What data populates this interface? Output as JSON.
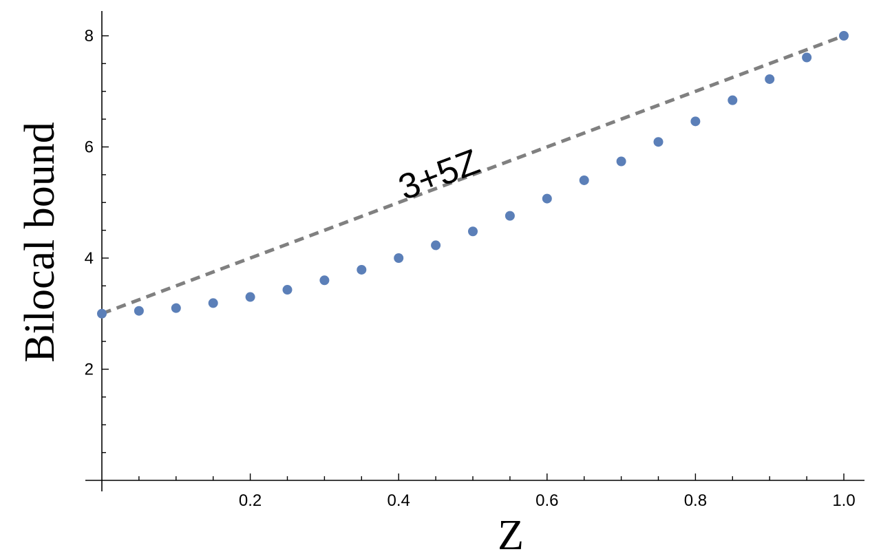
{
  "chart_data": {
    "type": "scatter",
    "title": "",
    "xlabel": "Z",
    "ylabel": "Bilocal bound",
    "xlim": [
      0,
      1.0
    ],
    "ylim": [
      0,
      8.4
    ],
    "grid": false,
    "x_ticks": [
      {
        "value": 0.2,
        "label": "0.2"
      },
      {
        "value": 0.4,
        "label": "0.4"
      },
      {
        "value": 0.6,
        "label": "0.6"
      },
      {
        "value": 0.8,
        "label": "0.8"
      },
      {
        "value": 1.0,
        "label": "1.0"
      }
    ],
    "y_ticks": [
      {
        "value": 2,
        "label": "2"
      },
      {
        "value": 4,
        "label": "4"
      },
      {
        "value": 6,
        "label": "6"
      },
      {
        "value": 8,
        "label": "8"
      }
    ],
    "series": [
      {
        "style": "points",
        "color": "#5b7fb8",
        "x": [
          0,
          0.05,
          0.1,
          0.15,
          0.2,
          0.25,
          0.3,
          0.35,
          0.4,
          0.45,
          0.5,
          0.55,
          0.6,
          0.65,
          0.7,
          0.75,
          0.8,
          0.85,
          0.9,
          0.95,
          1.0
        ],
        "y": [
          3.0,
          3.05,
          3.1,
          3.19,
          3.3,
          3.43,
          3.6,
          3.79,
          4.0,
          4.23,
          4.48,
          4.76,
          5.07,
          5.4,
          5.74,
          6.09,
          6.46,
          6.84,
          7.22,
          7.61,
          8.0
        ]
      },
      {
        "style": "dashed-line",
        "color": "#808080",
        "x": [
          0,
          1.0
        ],
        "y": [
          3.0,
          8.0
        ]
      }
    ],
    "annotations": [
      {
        "text": "3+5Z",
        "x": 0.46,
        "y": 5.3
      }
    ]
  }
}
